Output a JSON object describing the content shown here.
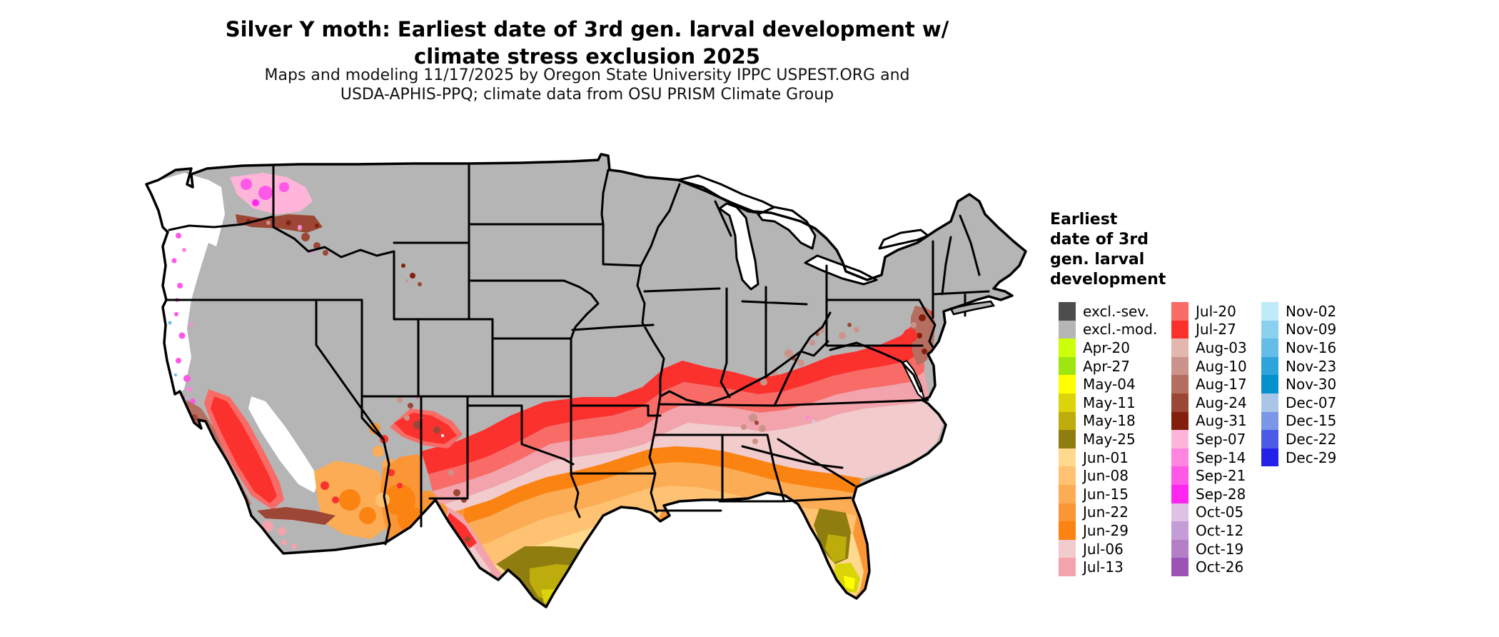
{
  "title": {
    "line1": "Silver Y moth: Earliest date of 3rd gen. larval development w/",
    "line2": "climate stress exclusion 2025"
  },
  "subtitle": {
    "line1": "Maps and modeling 11/17/2025 by Oregon State University IPPC USPEST.ORG and",
    "line2": "USDA-APHIS-PPQ; climate data from OSU PRISM Climate Group"
  },
  "map": {
    "area": "Contiguous United States",
    "no_data_color": "#FFFFFF",
    "state_border_color": "#000000"
  },
  "legend": {
    "title_lines": "Earliest\ndate of 3rd\ngen. larval\ndevelopment",
    "columns": [
      {
        "entries": [
          {
            "label": "excl.-sev.",
            "color": "#4D4D4D"
          },
          {
            "label": "excl.-mod.",
            "color": "#B5B5B5"
          },
          {
            "label": "Apr-20",
            "color": "#CCFF0A"
          },
          {
            "label": "Apr-27",
            "color": "#9FE611"
          },
          {
            "label": "May-04",
            "color": "#FFFF00"
          },
          {
            "label": "May-11",
            "color": "#DCD40A"
          },
          {
            "label": "May-18",
            "color": "#BDAC0C"
          },
          {
            "label": "May-25",
            "color": "#8F7D0F"
          },
          {
            "label": "Jun-01",
            "color": "#FFD98E"
          },
          {
            "label": "Jun-08",
            "color": "#FFC272"
          },
          {
            "label": "Jun-15",
            "color": "#FBAC55"
          },
          {
            "label": "Jun-22",
            "color": "#FB9637"
          },
          {
            "label": "Jun-29",
            "color": "#FB8312"
          },
          {
            "label": "Jul-06",
            "color": "#F2CBCC"
          },
          {
            "label": "Jul-13",
            "color": "#F2A3AC"
          }
        ]
      },
      {
        "entries": [
          {
            "label": "Jul-20",
            "color": "#F96B66"
          },
          {
            "label": "Jul-27",
            "color": "#FB312E"
          },
          {
            "label": "Aug-03",
            "color": "#E2B7AE"
          },
          {
            "label": "Aug-10",
            "color": "#CC938B"
          },
          {
            "label": "Aug-17",
            "color": "#B56E60"
          },
          {
            "label": "Aug-24",
            "color": "#9C4736"
          },
          {
            "label": "Aug-31",
            "color": "#83200D"
          },
          {
            "label": "Sep-07",
            "color": "#FFB5D9"
          },
          {
            "label": "Sep-14",
            "color": "#FF85E0"
          },
          {
            "label": "Sep-21",
            "color": "#FF57E8"
          },
          {
            "label": "Sep-28",
            "color": "#FF26F0"
          },
          {
            "label": "Oct-05",
            "color": "#DDC2E6"
          },
          {
            "label": "Oct-12",
            "color": "#C49CD6"
          },
          {
            "label": "Oct-19",
            "color": "#B47FC7"
          },
          {
            "label": "Oct-26",
            "color": "#9D52B5"
          }
        ]
      },
      {
        "entries": [
          {
            "label": "Nov-02",
            "color": "#BDEBFA"
          },
          {
            "label": "Nov-09",
            "color": "#8AD1F0"
          },
          {
            "label": "Nov-16",
            "color": "#64BDE8"
          },
          {
            "label": "Nov-23",
            "color": "#2FA3DC"
          },
          {
            "label": "Nov-30",
            "color": "#0590CE"
          },
          {
            "label": "Dec-07",
            "color": "#A9C6E8"
          },
          {
            "label": "Dec-15",
            "color": "#7C96E8"
          },
          {
            "label": "Dec-22",
            "color": "#4B5BE8"
          },
          {
            "label": "Dec-29",
            "color": "#2422E8"
          }
        ]
      }
    ]
  }
}
